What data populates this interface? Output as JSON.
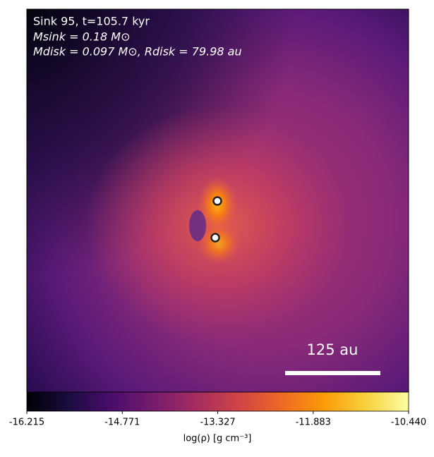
{
  "chart_data": {
    "type": "image",
    "annotations": [
      "Sink 95, t=105.7 kyr",
      "Msink = 0.18 M⊙",
      "Mdisk = 0.097 M⊙, Rdisk = 79.98 au"
    ],
    "scale_bar_label": "125 au",
    "cmap": "inferno",
    "clim": [
      -16.215,
      -10.44
    ],
    "colorbar_ticks": [
      -16.215,
      -14.771,
      -13.327,
      -11.883,
      {
        "value": -10.44,
        "label": "-10.440"
      }
    ],
    "colorbar_label": "log(ρ) [g cm⁻³]"
  }
}
